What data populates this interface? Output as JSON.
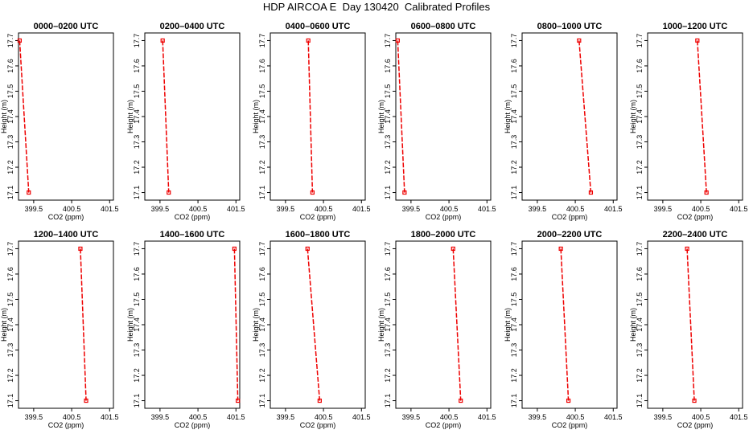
{
  "title": "HDP AIRCOA E  Day 130420  Calibrated Profiles",
  "colors": {
    "series": "#ee0000",
    "axis": "#000000"
  },
  "chart_data": [
    {
      "type": "line",
      "title": "0000–0200 UTC",
      "xlabel": "CO2 (ppm)",
      "ylabel": "Height (m)",
      "xlim": [
        399.1,
        401.6
      ],
      "ylim": [
        17.07,
        17.73
      ],
      "xticks": [
        "399.5",
        "400.5",
        "401.5"
      ],
      "xtick_values": [
        399.5,
        400.5,
        401.5
      ],
      "yticks": [
        "17.1",
        "17.2",
        "17.3",
        "17.4",
        "17.5",
        "17.6",
        "17.7"
      ],
      "ytick_values": [
        17.1,
        17.2,
        17.3,
        17.4,
        17.5,
        17.6,
        17.7
      ],
      "series": [
        {
          "x": [
            399.13,
            399.37
          ],
          "y": [
            17.7,
            17.1
          ]
        }
      ]
    },
    {
      "type": "line",
      "title": "0200–0400 UTC",
      "xlabel": "CO2 (ppm)",
      "ylabel": "Height (m)",
      "xlim": [
        399.1,
        401.6
      ],
      "ylim": [
        17.07,
        17.73
      ],
      "xticks": [
        "399.5",
        "400.5",
        "401.5"
      ],
      "xtick_values": [
        399.5,
        400.5,
        401.5
      ],
      "yticks": [
        "17.1",
        "17.2",
        "17.3",
        "17.4",
        "17.5",
        "17.6",
        "17.7"
      ],
      "ytick_values": [
        17.1,
        17.2,
        17.3,
        17.4,
        17.5,
        17.6,
        17.7
      ],
      "series": [
        {
          "x": [
            399.57,
            399.73
          ],
          "y": [
            17.7,
            17.1
          ]
        }
      ]
    },
    {
      "type": "line",
      "title": "0400–0600 UTC",
      "xlabel": "CO2 (ppm)",
      "ylabel": "Height (m)",
      "xlim": [
        399.1,
        401.6
      ],
      "ylim": [
        17.07,
        17.73
      ],
      "xticks": [
        "399.5",
        "400.5",
        "401.5"
      ],
      "xtick_values": [
        399.5,
        400.5,
        401.5
      ],
      "yticks": [
        "17.1",
        "17.2",
        "17.3",
        "17.4",
        "17.5",
        "17.6",
        "17.7"
      ],
      "ytick_values": [
        17.1,
        17.2,
        17.3,
        17.4,
        17.5,
        17.6,
        17.7
      ],
      "series": [
        {
          "x": [
            400.1,
            400.21
          ],
          "y": [
            17.7,
            17.1
          ]
        }
      ]
    },
    {
      "type": "line",
      "title": "0600–0800 UTC",
      "xlabel": "CO2 (ppm)",
      "ylabel": "Height (m)",
      "xlim": [
        399.1,
        401.6
      ],
      "ylim": [
        17.07,
        17.73
      ],
      "xticks": [
        "399.5",
        "400.5",
        "401.5"
      ],
      "xtick_values": [
        399.5,
        400.5,
        401.5
      ],
      "yticks": [
        "17.1",
        "17.2",
        "17.3",
        "17.4",
        "17.5",
        "17.6",
        "17.7"
      ],
      "ytick_values": [
        17.1,
        17.2,
        17.3,
        17.4,
        17.5,
        17.6,
        17.7
      ],
      "series": [
        {
          "x": [
            399.15,
            399.33
          ],
          "y": [
            17.7,
            17.1
          ]
        }
      ]
    },
    {
      "type": "line",
      "title": "0800–1000 UTC",
      "xlabel": "CO2 (ppm)",
      "ylabel": "Height (m)",
      "xlim": [
        399.1,
        401.6
      ],
      "ylim": [
        17.07,
        17.73
      ],
      "xticks": [
        "399.5",
        "400.5",
        "401.5"
      ],
      "xtick_values": [
        399.5,
        400.5,
        401.5
      ],
      "yticks": [
        "17.1",
        "17.2",
        "17.3",
        "17.4",
        "17.5",
        "17.6",
        "17.7"
      ],
      "ytick_values": [
        17.1,
        17.2,
        17.3,
        17.4,
        17.5,
        17.6,
        17.7
      ],
      "series": [
        {
          "x": [
            400.6,
            400.91
          ],
          "y": [
            17.7,
            17.1
          ]
        }
      ]
    },
    {
      "type": "line",
      "title": "1000–1200 UTC",
      "xlabel": "CO2 (ppm)",
      "ylabel": "Height (m)",
      "xlim": [
        399.1,
        401.6
      ],
      "ylim": [
        17.07,
        17.73
      ],
      "xticks": [
        "399.5",
        "400.5",
        "401.5"
      ],
      "xtick_values": [
        399.5,
        400.5,
        401.5
      ],
      "yticks": [
        "17.1",
        "17.2",
        "17.3",
        "17.4",
        "17.5",
        "17.6",
        "17.7"
      ],
      "ytick_values": [
        17.1,
        17.2,
        17.3,
        17.4,
        17.5,
        17.6,
        17.7
      ],
      "series": [
        {
          "x": [
            400.41,
            400.65
          ],
          "y": [
            17.7,
            17.1
          ]
        }
      ]
    },
    {
      "type": "line",
      "title": "1200–1400 UTC",
      "xlabel": "CO2 (ppm)",
      "ylabel": "Height (m)",
      "xlim": [
        399.1,
        401.6
      ],
      "ylim": [
        17.07,
        17.73
      ],
      "xticks": [
        "399.5",
        "400.5",
        "401.5"
      ],
      "xtick_values": [
        399.5,
        400.5,
        401.5
      ],
      "yticks": [
        "17.1",
        "17.2",
        "17.3",
        "17.4",
        "17.5",
        "17.6",
        "17.7"
      ],
      "ytick_values": [
        17.1,
        17.2,
        17.3,
        17.4,
        17.5,
        17.6,
        17.7
      ],
      "series": [
        {
          "x": [
            400.73,
            400.88
          ],
          "y": [
            17.7,
            17.1
          ]
        }
      ]
    },
    {
      "type": "line",
      "title": "1400–1600 UTC",
      "xlabel": "CO2 (ppm)",
      "ylabel": "Height (m)",
      "xlim": [
        399.1,
        401.6
      ],
      "ylim": [
        17.07,
        17.73
      ],
      "xticks": [
        "399.5",
        "400.5",
        "401.5"
      ],
      "xtick_values": [
        399.5,
        400.5,
        401.5
      ],
      "yticks": [
        "17.1",
        "17.2",
        "17.3",
        "17.4",
        "17.5",
        "17.6",
        "17.7"
      ],
      "ytick_values": [
        17.1,
        17.2,
        17.3,
        17.4,
        17.5,
        17.6,
        17.7
      ],
      "series": [
        {
          "x": [
            401.46,
            401.55
          ],
          "y": [
            17.7,
            17.1
          ]
        }
      ]
    },
    {
      "type": "line",
      "title": "1600–1800 UTC",
      "xlabel": "CO2 (ppm)",
      "ylabel": "Height (m)",
      "xlim": [
        399.1,
        401.6
      ],
      "ylim": [
        17.07,
        17.73
      ],
      "xticks": [
        "399.5",
        "400.5",
        "401.5"
      ],
      "xtick_values": [
        399.5,
        400.5,
        401.5
      ],
      "yticks": [
        "17.1",
        "17.2",
        "17.3",
        "17.4",
        "17.5",
        "17.6",
        "17.7"
      ],
      "ytick_values": [
        17.1,
        17.2,
        17.3,
        17.4,
        17.5,
        17.6,
        17.7
      ],
      "series": [
        {
          "x": [
            400.08,
            400.4
          ],
          "y": [
            17.7,
            17.1
          ]
        }
      ]
    },
    {
      "type": "line",
      "title": "1800–2000 UTC",
      "xlabel": "CO2 (ppm)",
      "ylabel": "Height (m)",
      "xlim": [
        399.1,
        401.6
      ],
      "ylim": [
        17.07,
        17.73
      ],
      "xticks": [
        "399.5",
        "400.5",
        "401.5"
      ],
      "xtick_values": [
        399.5,
        400.5,
        401.5
      ],
      "yticks": [
        "17.1",
        "17.2",
        "17.3",
        "17.4",
        "17.5",
        "17.6",
        "17.7"
      ],
      "ytick_values": [
        17.1,
        17.2,
        17.3,
        17.4,
        17.5,
        17.6,
        17.7
      ],
      "series": [
        {
          "x": [
            400.61,
            400.81
          ],
          "y": [
            17.7,
            17.1
          ]
        }
      ]
    },
    {
      "type": "line",
      "title": "2000–2200 UTC",
      "xlabel": "CO2 (ppm)",
      "ylabel": "Height (m)",
      "xlim": [
        399.1,
        401.6
      ],
      "ylim": [
        17.07,
        17.73
      ],
      "xticks": [
        "399.5",
        "400.5",
        "401.5"
      ],
      "xtick_values": [
        399.5,
        400.5,
        401.5
      ],
      "yticks": [
        "17.1",
        "17.2",
        "17.3",
        "17.4",
        "17.5",
        "17.6",
        "17.7"
      ],
      "ytick_values": [
        17.1,
        17.2,
        17.3,
        17.4,
        17.5,
        17.6,
        17.7
      ],
      "series": [
        {
          "x": [
            400.12,
            400.32
          ],
          "y": [
            17.7,
            17.1
          ]
        }
      ]
    },
    {
      "type": "line",
      "title": "2200–2400 UTC",
      "xlabel": "CO2 (ppm)",
      "ylabel": "Height (m)",
      "xlim": [
        399.1,
        401.6
      ],
      "ylim": [
        17.07,
        17.73
      ],
      "xticks": [
        "399.5",
        "400.5",
        "401.5"
      ],
      "xtick_values": [
        399.5,
        400.5,
        401.5
      ],
      "yticks": [
        "17.1",
        "17.2",
        "17.3",
        "17.4",
        "17.5",
        "17.6",
        "17.7"
      ],
      "ytick_values": [
        17.1,
        17.2,
        17.3,
        17.4,
        17.5,
        17.6,
        17.7
      ],
      "series": [
        {
          "x": [
            400.14,
            400.33
          ],
          "y": [
            17.7,
            17.1
          ]
        }
      ]
    }
  ]
}
